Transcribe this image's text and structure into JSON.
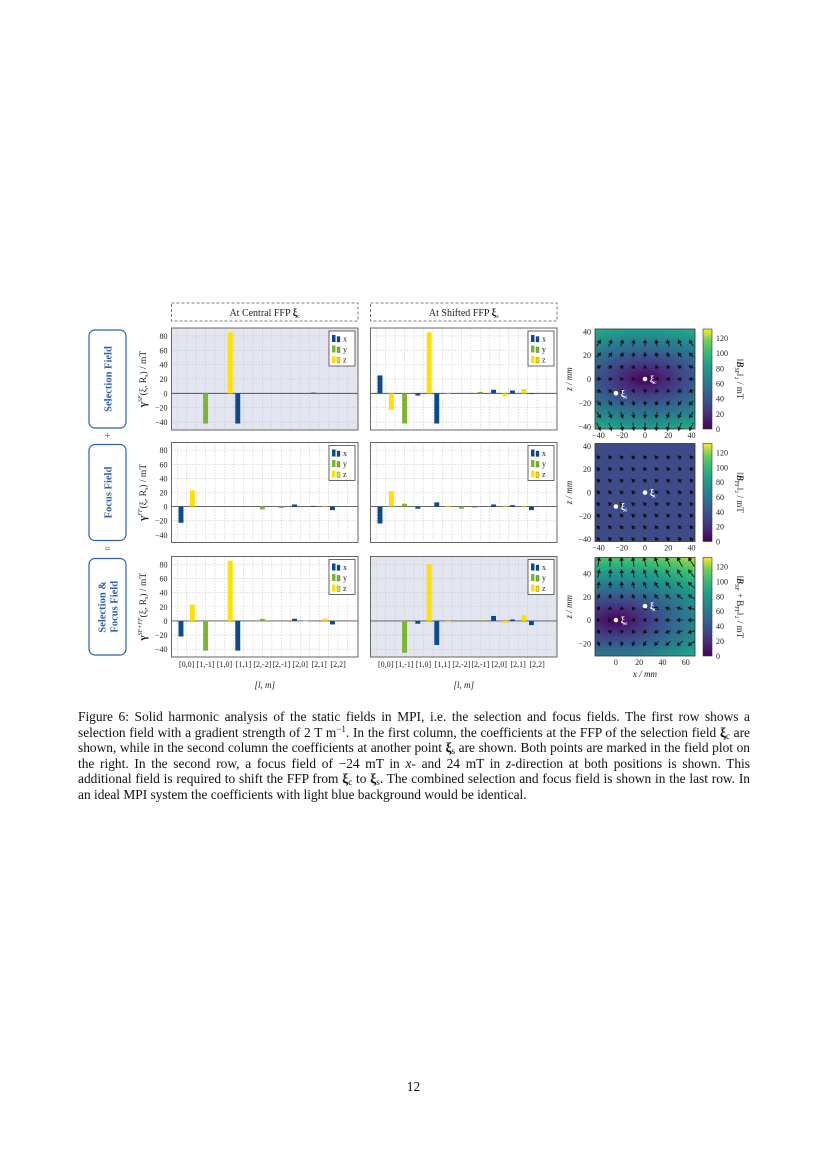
{
  "page_number": "12",
  "figure": {
    "column_headers": [
      {
        "text": "At Central FFP ",
        "symbol": "ξ",
        "sub": "c"
      },
      {
        "text": "At Shifted FFP ",
        "symbol": "ξ",
        "sub": "s"
      }
    ],
    "row_labels": [
      [
        "Selection Field"
      ],
      [
        "Focus Field"
      ],
      [
        "Selection &",
        "Focus Field"
      ]
    ],
    "row_operators": [
      "+",
      "="
    ],
    "legend": [
      "x",
      "y",
      "z"
    ],
    "colors": {
      "x": "#0b4a8c",
      "y": "#7db52f",
      "z": "#ffe000",
      "highlight_bg": "#e3e5f1",
      "row_label": "#2d62a8"
    },
    "field_plots": [
      {
        "row": 0,
        "xlim": [
          -43,
          43
        ],
        "zlim": [
          -42,
          42
        ],
        "xticks": [
          -40,
          -20,
          0,
          20,
          40
        ],
        "zticks": [
          -40,
          -20,
          0,
          20,
          40
        ],
        "zlabel": "z / mm",
        "xlabel": "",
        "colorbar_label": {
          "pre": "‖",
          "bold": "B",
          "sub": "SF",
          "post": "‖₂ / mT"
        },
        "colorbar_ticks": [
          0,
          20,
          40,
          60,
          80,
          100,
          120
        ],
        "colorbar_range": [
          0,
          132
        ],
        "colormap": "viridis",
        "points": [
          {
            "symbol": "ξ",
            "sub": "c",
            "x": 0,
            "z": 0
          },
          {
            "symbol": "ξ",
            "sub": "s",
            "x": -25,
            "z": -12
          }
        ]
      },
      {
        "row": 1,
        "xlim": [
          -43,
          43
        ],
        "zlim": [
          -42,
          42
        ],
        "xticks": [
          -40,
          -20,
          0,
          20,
          40
        ],
        "zticks": [
          -40,
          -20,
          0,
          20,
          40
        ],
        "zlabel": "z / mm",
        "xlabel": "",
        "colorbar_label": {
          "pre": "‖",
          "bold": "B",
          "sub": "FF",
          "post": "‖₂ / mT"
        },
        "colorbar_ticks": [
          0,
          20,
          40,
          60,
          80,
          100,
          120
        ],
        "colorbar_range": [
          0,
          132
        ],
        "colormap": "viridis",
        "points": [
          {
            "symbol": "ξ",
            "sub": "c",
            "x": 0,
            "z": 0
          },
          {
            "symbol": "ξ",
            "sub": "s",
            "x": -25,
            "z": -12
          }
        ]
      },
      {
        "row": 2,
        "xlim": [
          -18,
          68
        ],
        "zlim": [
          -31,
          54
        ],
        "xticks": [
          0,
          20,
          40,
          60
        ],
        "zticks": [
          -20,
          0,
          20,
          40
        ],
        "zlabel": "z / mm",
        "xlabel": "x / mm",
        "colorbar_label": {
          "pre": "‖",
          "bold": "B",
          "sub": "SF",
          "post": " + B",
          "sub2": "FF",
          "post2": "‖₂ / mT"
        },
        "colorbar_ticks": [
          0,
          20,
          40,
          60,
          80,
          100,
          120
        ],
        "colorbar_range": [
          0,
          132
        ],
        "colormap": "viridis",
        "points": [
          {
            "symbol": "ξ",
            "sub": "c",
            "x": 25,
            "z": 12
          },
          {
            "symbol": "ξ",
            "sub": "s",
            "x": 0,
            "z": 0
          }
        ]
      }
    ]
  },
  "chart_data": [
    {
      "type": "bar",
      "row": 0,
      "column": 0,
      "highlighted": true,
      "legend": "top-right",
      "grid": true,
      "categories": [
        "[0,0]",
        "[1,-1]",
        "[1,0]",
        "[1,1]",
        "[2,-2]",
        "[2,-1]",
        "[2,0]",
        "[2,1]",
        "[2,2]"
      ],
      "series": [
        {
          "name": "x",
          "values": [
            0,
            0,
            0,
            -42,
            0,
            0,
            0,
            1,
            0
          ]
        },
        {
          "name": "y",
          "values": [
            0,
            -42,
            0,
            0,
            0,
            0,
            0,
            0,
            0
          ]
        },
        {
          "name": "z",
          "values": [
            0,
            0,
            85,
            0,
            0,
            0,
            0,
            0,
            0
          ]
        }
      ],
      "ylabel": {
        "symbol": "γ",
        "sup": "SF",
        "rest": "(ξ, R",
        "sub": "s",
        "tail": ") / mT"
      },
      "ylim": [
        -51,
        91
      ],
      "yticks": [
        -40,
        -20,
        0,
        20,
        40,
        60,
        80
      ],
      "xlabel": ""
    },
    {
      "type": "bar",
      "row": 0,
      "column": 1,
      "highlighted": false,
      "legend": "top-right",
      "grid": true,
      "categories": [
        "[0,0]",
        "[1,-1]",
        "[1,0]",
        "[1,1]",
        "[2,-2]",
        "[2,-1]",
        "[2,0]",
        "[2,1]",
        "[2,2]"
      ],
      "series": [
        {
          "name": "x",
          "values": [
            25,
            0,
            -3,
            -42,
            0,
            0,
            5,
            4,
            -1
          ]
        },
        {
          "name": "y",
          "values": [
            0,
            -42,
            0,
            0,
            0,
            2,
            0,
            0,
            0
          ]
        },
        {
          "name": "z",
          "values": [
            -23,
            0,
            85,
            -1,
            0,
            0,
            -4,
            6,
            0
          ]
        }
      ],
      "ylim": [
        -51,
        91
      ],
      "yticks": [
        -40,
        -20,
        0,
        20,
        40,
        60,
        80
      ],
      "xlabel": ""
    },
    {
      "type": "bar",
      "row": 1,
      "column": 0,
      "highlighted": false,
      "legend": "top-right",
      "grid": true,
      "categories": [
        "[0,0]",
        "[1,-1]",
        "[1,0]",
        "[1,1]",
        "[2,-2]",
        "[2,-1]",
        "[2,0]",
        "[2,1]",
        "[2,2]"
      ],
      "series": [
        {
          "name": "x",
          "values": [
            -23,
            0,
            0,
            0,
            0,
            0,
            3,
            1,
            -5
          ]
        },
        {
          "name": "y",
          "values": [
            0,
            0,
            0,
            0,
            -4,
            -2,
            0,
            0,
            0
          ]
        },
        {
          "name": "z",
          "values": [
            23,
            0,
            0,
            0,
            0,
            0,
            0,
            -1,
            0
          ]
        }
      ],
      "ylabel": {
        "symbol": "γ",
        "sup": "FF",
        "rest": "(ξ, R",
        "sub": "s",
        "tail": ") / mT"
      },
      "ylim": [
        -51,
        91
      ],
      "yticks": [
        -40,
        -20,
        0,
        20,
        40,
        60,
        80
      ],
      "xlabel": ""
    },
    {
      "type": "bar",
      "row": 1,
      "column": 1,
      "highlighted": false,
      "legend": "top-right",
      "grid": true,
      "categories": [
        "[0,0]",
        "[1,-1]",
        "[1,0]",
        "[1,1]",
        "[2,-2]",
        "[2,-1]",
        "[2,0]",
        "[2,1]",
        "[2,2]"
      ],
      "series": [
        {
          "name": "x",
          "values": [
            -24,
            0,
            -3,
            6,
            0,
            -1,
            3,
            2,
            -5
          ]
        },
        {
          "name": "y",
          "values": [
            0,
            4,
            0,
            0,
            -3,
            0,
            0,
            0,
            0
          ]
        },
        {
          "name": "z",
          "values": [
            22,
            0,
            0,
            1,
            0,
            0,
            1,
            -1,
            0
          ]
        }
      ],
      "ylim": [
        -51,
        91
      ],
      "yticks": [
        -40,
        -20,
        0,
        20,
        40,
        60,
        80
      ],
      "xlabel": ""
    },
    {
      "type": "bar",
      "row": 2,
      "column": 0,
      "highlighted": false,
      "legend": "top-right",
      "grid": true,
      "categories": [
        "[0,0]",
        "[1,-1]",
        "[1,0]",
        "[1,1]",
        "[2,-2]",
        "[2,-1]",
        "[2,0]",
        "[2,1]",
        "[2,2]"
      ],
      "series": [
        {
          "name": "x",
          "values": [
            -22,
            0,
            0,
            -42,
            0,
            0,
            3,
            0,
            -5
          ]
        },
        {
          "name": "y",
          "values": [
            0,
            -42,
            0,
            0,
            3,
            0,
            0,
            0,
            0
          ]
        },
        {
          "name": "z",
          "values": [
            23,
            0,
            85,
            0,
            0,
            0,
            -1,
            3,
            0
          ]
        }
      ],
      "ylabel": {
        "symbol": "γ",
        "sup": "SF+FF",
        "rest": "(ξ, R",
        "sub": "s",
        "tail": ") / mT"
      },
      "ylim": [
        -51,
        91
      ],
      "yticks": [
        -40,
        -20,
        0,
        20,
        40,
        60,
        80
      ],
      "xlabel": "[l, m]"
    },
    {
      "type": "bar",
      "row": 2,
      "column": 1,
      "highlighted": true,
      "legend": "top-right",
      "grid": true,
      "categories": [
        "[0,0]",
        "[1,-1]",
        "[1,0]",
        "[1,1]",
        "[2,-2]",
        "[2,-1]",
        "[2,0]",
        "[2,1]",
        "[2,2]"
      ],
      "series": [
        {
          "name": "x",
          "values": [
            0,
            0,
            -4,
            -34,
            0,
            0,
            7,
            2,
            -6
          ]
        },
        {
          "name": "y",
          "values": [
            0,
            -45,
            0,
            0,
            1,
            1,
            0,
            0,
            0
          ]
        },
        {
          "name": "z",
          "values": [
            0,
            0,
            80,
            -2,
            0,
            0,
            -3,
            8,
            0
          ]
        }
      ],
      "ylim": [
        -51,
        91
      ],
      "yticks": [
        -40,
        -20,
        0,
        20,
        40,
        60,
        80
      ],
      "xlabel": "[l, m]"
    }
  ],
  "caption": {
    "label": "Figure 6:",
    "parts": [
      {
        "t": " Solid harmonic analysis of the static fields in MPI, i.e. the selection and focus fields. The first row shows a selection field with a gradient strength of 2 T m"
      },
      {
        "sup": "−1"
      },
      {
        "t": ". In the first column, the coefficients at the FFP of the selection field "
      },
      {
        "b": "ξ",
        "sub": "c"
      },
      {
        "t": " are shown, while in the second column the coefficients at another point "
      },
      {
        "b": "ξ",
        "sub": "s"
      },
      {
        "t": " are shown. Both points are marked in the field plot on the right. In the second row, a focus field of −24 mT in "
      },
      {
        "i": "x"
      },
      {
        "t": "- and 24 mT in "
      },
      {
        "i": "z"
      },
      {
        "t": "-direction at both positions is shown. This additional field is required to shift the FFP from "
      },
      {
        "b": "ξ",
        "sub": "c"
      },
      {
        "t": " to "
      },
      {
        "b": "ξ",
        "sub": "s"
      },
      {
        "t": ". The combined selection and focus field is shown in the last row. In an ideal MPI system the coefficients with light blue background would be identical."
      }
    ]
  }
}
